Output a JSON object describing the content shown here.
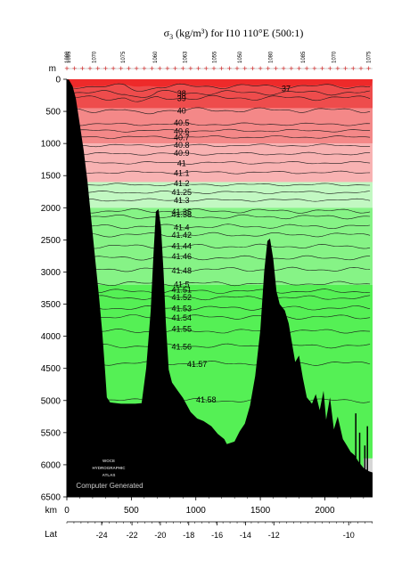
{
  "chart_data": {
    "type": "area",
    "title": "σ3 (kg/m³) for I10 110°E (500:1)",
    "title_parts": {
      "sigma": "σ",
      "sub": "3",
      "rest": " (kg/m³) for I10 110°E (500:1)"
    },
    "y_axis_label": "m",
    "x_axis_label": "km",
    "lat_axis_label": "Lat",
    "y_ticks": [
      0,
      500,
      1000,
      1500,
      2000,
      2500,
      3000,
      3500,
      4000,
      4500,
      5000,
      5500,
      6000,
      6500
    ],
    "x_ticks": [
      0,
      500,
      1000,
      1500,
      2000
    ],
    "xlim": [
      0,
      2370
    ],
    "ylim": [
      0,
      6500
    ],
    "lat_ticks": [
      {
        "km": 270,
        "label": "-24"
      },
      {
        "km": 505,
        "label": "-22"
      },
      {
        "km": 725,
        "label": "-20"
      },
      {
        "km": 945,
        "label": "-18"
      },
      {
        "km": 1165,
        "label": "-16"
      },
      {
        "km": 1385,
        "label": "-14"
      },
      {
        "km": 1605,
        "label": "-12"
      },
      {
        "km": 2185,
        "label": "-10"
      }
    ],
    "station_labels": [
      {
        "km": 0,
        "label": "1090"
      },
      {
        "km": 15,
        "label": "1095"
      },
      {
        "km": 210,
        "label": "1070"
      },
      {
        "km": 435,
        "label": "1075"
      },
      {
        "km": 685,
        "label": "1060"
      },
      {
        "km": 915,
        "label": "1063"
      },
      {
        "km": 1145,
        "label": "1055"
      },
      {
        "km": 1340,
        "label": "1050"
      },
      {
        "km": 1580,
        "label": "1080"
      },
      {
        "km": 1830,
        "label": "1085"
      },
      {
        "km": 2070,
        "label": "1070"
      },
      {
        "km": 2340,
        "label": "1075"
      }
    ],
    "contours": [
      {
        "value": "37",
        "depth": 110,
        "label_km": 1700
      },
      {
        "value": "38",
        "depth": 210,
        "label_km": 890
      },
      {
        "value": "39",
        "depth": 290,
        "label_km": 890
      },
      {
        "value": "40",
        "depth": 480,
        "label_km": 890
      },
      {
        "value": "40.5",
        "depth": 700,
        "label_km": 890
      },
      {
        "value": "40.6",
        "depth": 800,
        "label_km": 890
      },
      {
        "value": "40.7",
        "depth": 900,
        "label_km": 890
      },
      {
        "value": "40.8",
        "depth": 1030,
        "label_km": 890
      },
      {
        "value": "40.9",
        "depth": 1160,
        "label_km": 890
      },
      {
        "value": "41",
        "depth": 1300,
        "label_km": 890
      },
      {
        "value": "41.1",
        "depth": 1450,
        "label_km": 890
      },
      {
        "value": "41.2",
        "depth": 1640,
        "label_km": 890
      },
      {
        "value": "41.25",
        "depth": 1760,
        "label_km": 890
      },
      {
        "value": "41.3",
        "depth": 1880,
        "label_km": 890
      },
      {
        "value": "41.35",
        "depth": 2050,
        "label_km": 890
      },
      {
        "value": "41.38",
        "depth": 2140,
        "label_km": 890
      },
      {
        "value": "41.4",
        "depth": 2290,
        "label_km": 890
      },
      {
        "value": "41.42",
        "depth": 2420,
        "label_km": 890
      },
      {
        "value": "41.44",
        "depth": 2600,
        "label_km": 890
      },
      {
        "value": "41.46",
        "depth": 2780,
        "label_km": 890
      },
      {
        "value": "41.48",
        "depth": 2960,
        "label_km": 890
      },
      {
        "value": "41.5",
        "depth": 3180,
        "label_km": 890
      },
      {
        "value": "41.51",
        "depth": 3300,
        "label_km": 890
      },
      {
        "value": "41.52",
        "depth": 3400,
        "label_km": 890
      },
      {
        "value": "41.53",
        "depth": 3560,
        "label_km": 890
      },
      {
        "value": "41.54",
        "depth": 3700,
        "label_km": 890
      },
      {
        "value": "41.55",
        "depth": 3920,
        "label_km": 890
      },
      {
        "value": "41.56",
        "depth": 4150,
        "label_km": 890
      },
      {
        "value": "41.57",
        "depth": 4420,
        "label_km": 1010
      },
      {
        "value": "41.58",
        "depth": 5000,
        "label_km": 1080
      }
    ],
    "bands": [
      {
        "to_depth": 450,
        "color": "#ee4c4c"
      },
      {
        "to_depth": 1000,
        "color": "#f48888"
      },
      {
        "to_depth": 1600,
        "color": "#f8b2b2"
      },
      {
        "to_depth": 2000,
        "color": "#c2f8c2"
      },
      {
        "to_depth": 3200,
        "color": "#86f386"
      },
      {
        "to_depth": 6500,
        "color": "#55f055"
      }
    ],
    "surface_color": "#ee2a2a",
    "bottom_color": "#000000",
    "bathymetry": [
      [
        0,
        6500
      ],
      [
        0,
        6
      ],
      [
        15,
        6
      ],
      [
        45,
        110
      ],
      [
        70,
        300
      ],
      [
        100,
        700
      ],
      [
        130,
        1100
      ],
      [
        160,
        1600
      ],
      [
        190,
        2200
      ],
      [
        220,
        2800
      ],
      [
        250,
        3400
      ],
      [
        275,
        3950
      ],
      [
        295,
        4500
      ],
      [
        310,
        4950
      ],
      [
        335,
        5030
      ],
      [
        420,
        5050
      ],
      [
        530,
        5050
      ],
      [
        580,
        5040
      ],
      [
        615,
        4500
      ],
      [
        650,
        3600
      ],
      [
        672,
        2700
      ],
      [
        690,
        2060
      ],
      [
        710,
        2020
      ],
      [
        730,
        2300
      ],
      [
        750,
        3000
      ],
      [
        768,
        3800
      ],
      [
        790,
        4520
      ],
      [
        815,
        4720
      ],
      [
        860,
        4850
      ],
      [
        900,
        4960
      ],
      [
        960,
        5180
      ],
      [
        1010,
        5280
      ],
      [
        1060,
        5320
      ],
      [
        1120,
        5400
      ],
      [
        1170,
        5520
      ],
      [
        1220,
        5600
      ],
      [
        1240,
        5680
      ],
      [
        1300,
        5640
      ],
      [
        1340,
        5480
      ],
      [
        1380,
        5360
      ],
      [
        1420,
        5080
      ],
      [
        1460,
        4620
      ],
      [
        1500,
        3900
      ],
      [
        1530,
        3000
      ],
      [
        1555,
        2520
      ],
      [
        1575,
        2480
      ],
      [
        1600,
        2800
      ],
      [
        1625,
        3300
      ],
      [
        1650,
        3500
      ],
      [
        1690,
        3600
      ],
      [
        1720,
        3800
      ],
      [
        1745,
        4100
      ],
      [
        1770,
        4400
      ],
      [
        1800,
        4300
      ],
      [
        1830,
        4650
      ],
      [
        1860,
        4950
      ],
      [
        1900,
        5050
      ],
      [
        1930,
        4900
      ],
      [
        1960,
        5150
      ],
      [
        1990,
        4850
      ],
      [
        2010,
        5300
      ],
      [
        2040,
        4950
      ],
      [
        2070,
        5450
      ],
      [
        2100,
        5250
      ],
      [
        2140,
        5600
      ],
      [
        2170,
        5700
      ],
      [
        2200,
        5800
      ],
      [
        2230,
        5850
      ],
      [
        2260,
        5950
      ],
      [
        2300,
        6050
      ],
      [
        2340,
        6100
      ],
      [
        2370,
        6120
      ],
      [
        2370,
        6500
      ]
    ]
  },
  "logo": {
    "line1": "WOCE",
    "line2": "HYDROGRAPHIC",
    "line3": "ATLAS",
    "caption": "Computer Generated"
  }
}
